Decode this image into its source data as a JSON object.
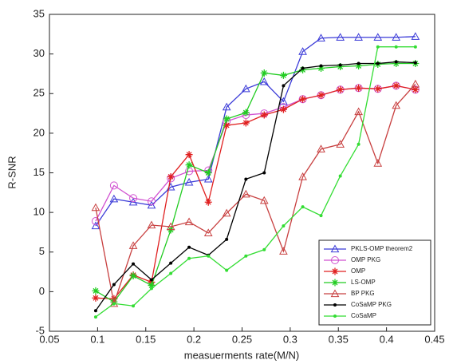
{
  "chart_data": {
    "type": "line",
    "xlabel": "measuerments rate(M/N)",
    "ylabel": "R-SNR",
    "x": [
      0.098,
      0.117,
      0.137,
      0.156,
      0.176,
      0.195,
      0.215,
      0.234,
      0.254,
      0.273,
      0.293,
      0.313,
      0.332,
      0.352,
      0.371,
      0.391,
      0.41,
      0.43
    ],
    "series": [
      {
        "name": "PKLS-OMP theorem2",
        "color": "#3b3bd8",
        "marker": "triangle",
        "values": [
          8.3,
          11.7,
          11.3,
          10.9,
          13.2,
          13.8,
          14.2,
          23.3,
          25.6,
          26.5,
          24.0,
          30.3,
          32.0,
          32.1,
          32.1,
          32.1,
          32.1,
          32.2
        ]
      },
      {
        "name": "OMP PKG",
        "color": "#d050d0",
        "marker": "circle",
        "values": [
          8.9,
          13.4,
          11.8,
          11.4,
          14.3,
          15.2,
          15.3,
          21.5,
          22.3,
          22.5,
          23.3,
          24.3,
          24.8,
          25.5,
          25.7,
          25.6,
          26.0,
          25.5
        ]
      },
      {
        "name": "OMP",
        "color": "#e02020",
        "marker": "star",
        "values": [
          -0.8,
          -0.9,
          2.1,
          1.2,
          14.5,
          17.3,
          11.3,
          21.0,
          21.3,
          22.3,
          23.0,
          24.3,
          24.8,
          25.5,
          25.7,
          25.6,
          26.0,
          25.5
        ]
      },
      {
        "name": "LS-OMP",
        "color": "#22cc22",
        "marker": "star",
        "values": [
          0.1,
          -1.3,
          2.0,
          0.8,
          7.8,
          16.0,
          15.0,
          21.8,
          22.6,
          27.6,
          27.3,
          28.0,
          28.2,
          28.4,
          28.5,
          28.7,
          28.8,
          28.8
        ]
      },
      {
        "name": "BP PKG",
        "color": "#c84040",
        "marker": "triangle",
        "values": [
          10.6,
          -1.5,
          5.8,
          8.4,
          8.2,
          8.8,
          7.4,
          9.9,
          12.3,
          11.5,
          5.1,
          14.5,
          18.0,
          18.6,
          22.7,
          16.2,
          23.5,
          26.2
        ]
      },
      {
        "name": "CoSaMP PKG",
        "color": "#000000",
        "marker": "dot",
        "values": [
          -2.4,
          0.9,
          3.5,
          1.5,
          3.6,
          5.6,
          4.6,
          6.6,
          14.2,
          15.0,
          26.0,
          28.2,
          28.5,
          28.6,
          28.8,
          28.8,
          29.0,
          28.9
        ]
      },
      {
        "name": "CoSaMP",
        "color": "#33dd33",
        "marker": "dot",
        "values": [
          -3.2,
          -1.5,
          -1.8,
          0.4,
          2.3,
          4.2,
          4.5,
          2.7,
          4.5,
          5.3,
          8.3,
          10.7,
          9.6,
          14.6,
          18.6,
          30.9,
          30.9,
          30.9
        ]
      }
    ],
    "xlim": [
      0.05,
      0.45
    ],
    "xticks": [
      0.05,
      0.1,
      0.15,
      0.2,
      0.25,
      0.3,
      0.35,
      0.4,
      0.45
    ],
    "ylim": [
      -5,
      35
    ],
    "yticks": [
      -5,
      0,
      5,
      10,
      15,
      20,
      25,
      30,
      35
    ],
    "grid": false,
    "legend": "lower right"
  }
}
